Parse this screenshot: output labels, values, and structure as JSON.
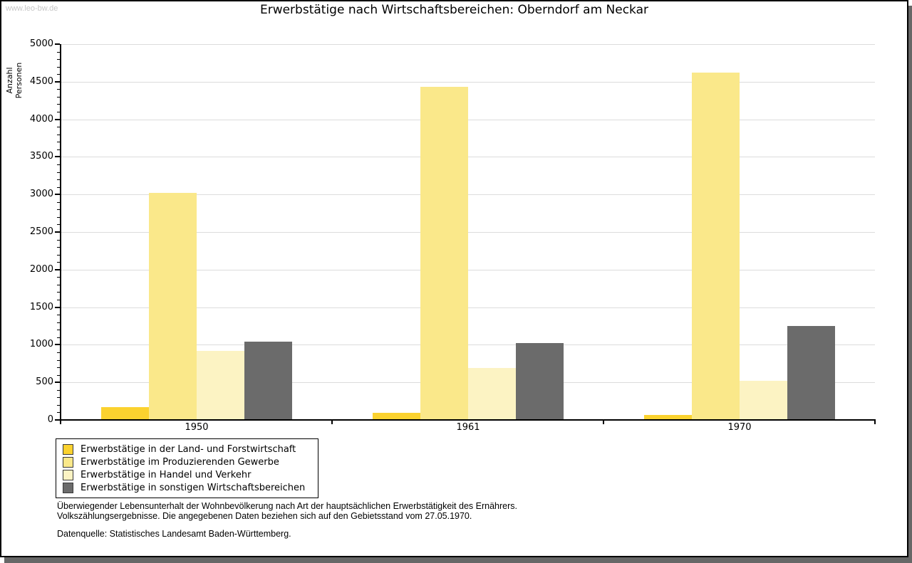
{
  "watermark": "www.leo-bw.de",
  "title": "Erwerbstätige nach Wirtschaftsbereichen: Oberndorf am Neckar",
  "chart_data": {
    "type": "bar",
    "title": "Erwerbstätige nach Wirtschaftsbereichen: Oberndorf am Neckar",
    "xlabel": "",
    "ylabel": "Anzahl Personen",
    "ylim": [
      0,
      5000
    ],
    "ytick_step": 500,
    "minor_tick_step": 100,
    "grid": true,
    "legend_position": "bottom-left",
    "categories": [
      "1950",
      "1961",
      "1970"
    ],
    "series": [
      {
        "name": "Erwerbstätige in der Land- und Forstwirtschaft",
        "color": "#fbd22f",
        "values": [
          175,
          90,
          70
        ]
      },
      {
        "name": "Erwerbstätige im Produzierenden Gewerbe",
        "color": "#fae88a",
        "values": [
          3020,
          4430,
          4620
        ]
      },
      {
        "name": "Erwerbstätige in Handel und Verkehr",
        "color": "#fcf3c3",
        "values": [
          920,
          690,
          520
        ]
      },
      {
        "name": "Erwerbstätige in sonstigen Wirtschaftsbereichen",
        "color": "#6b6b6b",
        "values": [
          1040,
          1020,
          1250
        ]
      }
    ]
  },
  "footnotes": {
    "line1": "Überwiegender Lebensunterhalt der Wohnbevölkerung nach Art der hauptsächlichen Erwerbstätigkeit des Ernährers.",
    "line2": "Volkszählungsergebnisse. Die angegebenen Daten beziehen sich auf den Gebietsstand vom 27.05.1970.",
    "source": "Datenquelle: Statistisches Landesamt Baden-Württemberg."
  },
  "colors": {
    "grid": "#dcdcdc",
    "axis": "#000000",
    "frame_border": "#000000",
    "frame_shadow": "#676767",
    "watermark": "#c6c6c6"
  }
}
